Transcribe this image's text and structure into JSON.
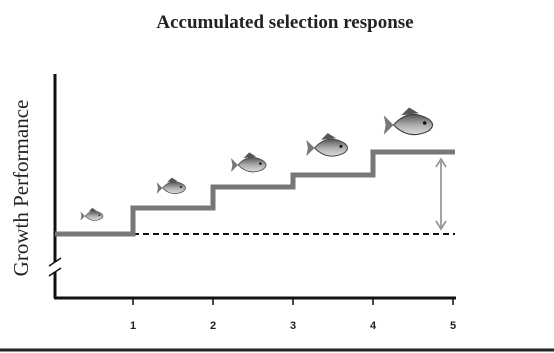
{
  "title": "Accumulated selection response",
  "y_label": "Growth Performance",
  "x_ticks": [
    "1",
    "2",
    "3",
    "4",
    "5"
  ]
}
